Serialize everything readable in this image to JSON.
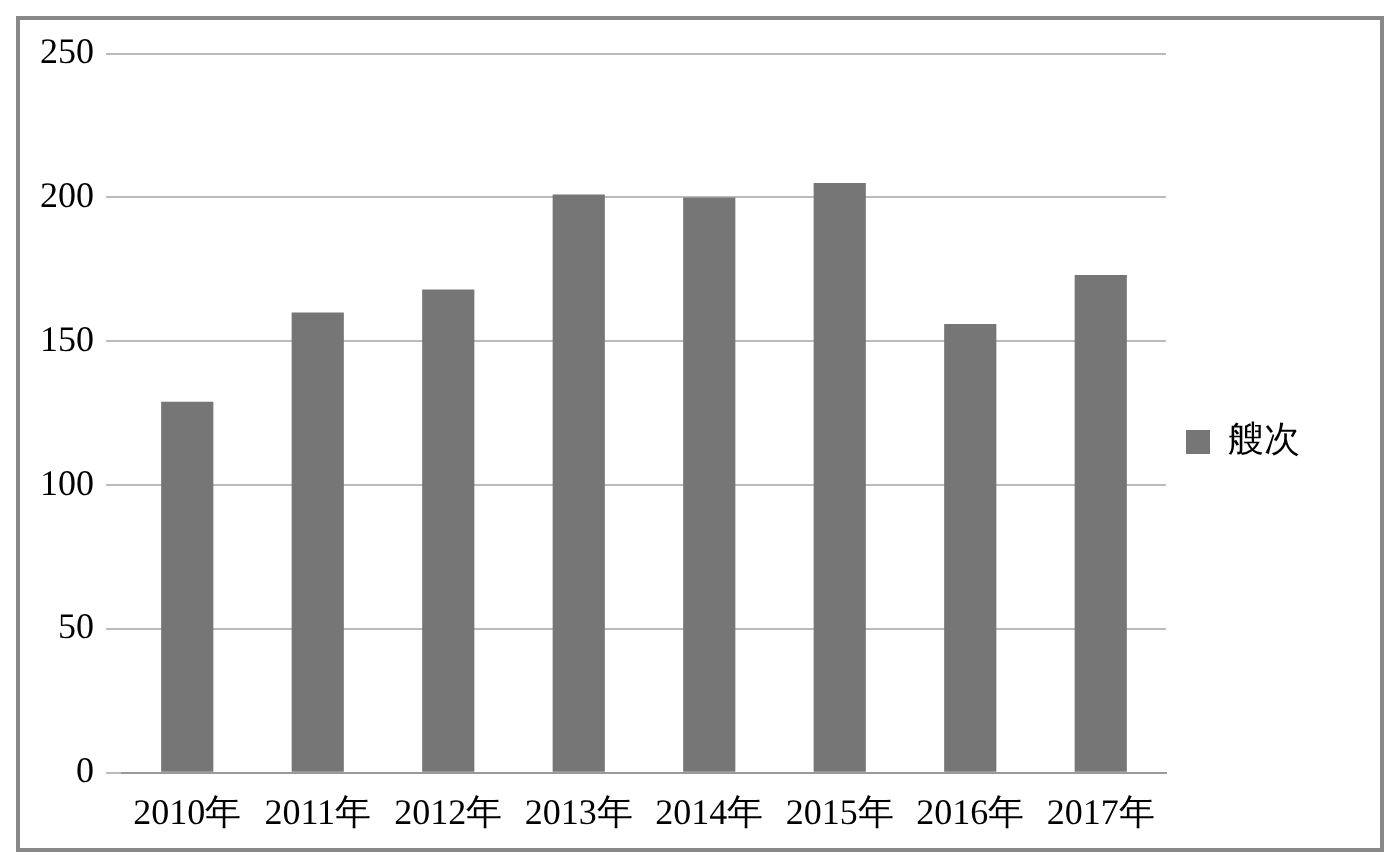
{
  "chart_data": {
    "type": "bar",
    "categories": [
      "2010年",
      "2011年",
      "2012年",
      "2013年",
      "2014年",
      "2015年",
      "2016年",
      "2017年"
    ],
    "series": [
      {
        "name": "艘次",
        "color": "#767676",
        "values": [
          129,
          160,
          168,
          201,
          200,
          205,
          156,
          173
        ]
      }
    ],
    "ylim": [
      0,
      250
    ],
    "yticks": [
      0,
      50,
      100,
      150,
      200,
      250
    ],
    "grid": "y",
    "legend": "right"
  }
}
